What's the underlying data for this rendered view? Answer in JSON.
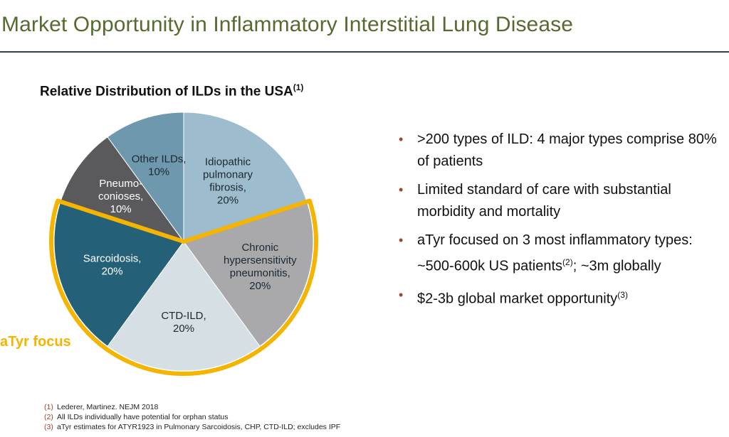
{
  "title": "Market Opportunity in Inflammatory Interstitial Lung Disease",
  "chart": {
    "heading": "Relative Distribution of ILDs in the USA",
    "heading_ref": "(1)",
    "focus_label": "aTyr focus"
  },
  "chart_data": {
    "type": "pie",
    "title": "Relative Distribution of ILDs in the USA",
    "slices": [
      {
        "lines": [
          "Idiopathic",
          "pulmonary",
          "fibrosis,",
          "20%"
        ],
        "value": 20,
        "color": "#9dbccd"
      },
      {
        "lines": [
          "Chronic",
          "hypersensitivity",
          "pneumonitis,",
          "20%"
        ],
        "value": 20,
        "color": "#a9a9ab"
      },
      {
        "lines": [
          "CTD-ILD,",
          "20%"
        ],
        "value": 20,
        "color": "#d5dfe4"
      },
      {
        "lines": [
          "Sarcoidosis,",
          "20%"
        ],
        "value": 20,
        "color": "#246179"
      },
      {
        "lines": [
          "Pneumo-",
          "conioses,",
          "10%"
        ],
        "value": 10,
        "color": "#5a5a5c"
      },
      {
        "lines": [
          "Other ILDs,",
          "10%"
        ],
        "value": 10,
        "color": "#6e98ad"
      }
    ],
    "highlight": {
      "label": "aTyr focus",
      "slices": [
        1,
        2,
        3
      ],
      "color": "#f5b400"
    }
  },
  "bullets": [
    {
      "text": ">200 types of ILD: 4 major types comprise 80% of patients",
      "ref": ""
    },
    {
      "text": "Limited standard of care with substantial morbidity and mortality",
      "ref": ""
    },
    {
      "text": "aTyr focused on 3 most inflammatory types: ~500-600k US patients",
      "ref": "(2)",
      "tail": "; ~3m globally"
    },
    {
      "text": "$2-3b global market opportunity",
      "ref": "(3)"
    }
  ],
  "bullet_symbol": "•",
  "footnotes": [
    {
      "num": "(1)",
      "text": "Lederer, Martinez. NEJM 2018"
    },
    {
      "num": "(2)",
      "text": "All ILDs individually have potential for orphan status"
    },
    {
      "num": "(3)",
      "text": "aTyr estimates for ATYR1923 in Pulmonary Sarcoidosis, CHP, CTD-ILD; excludes IPF"
    }
  ]
}
